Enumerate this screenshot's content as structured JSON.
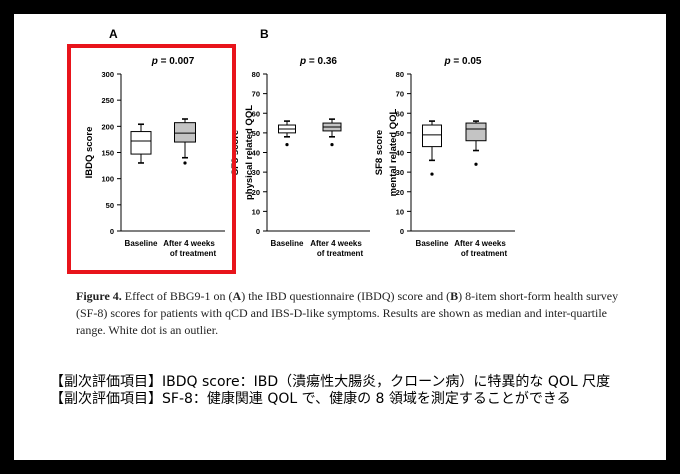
{
  "chart_data": [
    {
      "type": "box",
      "panel_label": "A",
      "p_value": "p = 0.007",
      "ylabel": "IBDQ score",
      "ylim": [
        0,
        300
      ],
      "yticks": [
        0,
        50,
        100,
        150,
        200,
        250,
        300
      ],
      "categories": [
        "Baseline",
        "After 4 weeks of treatment"
      ],
      "boxes": [
        {
          "whisker_low": 130,
          "q1": 147,
          "median": 172,
          "q3": 190,
          "whisker_high": 204,
          "outliers": []
        },
        {
          "whisker_low": 140,
          "q1": 170,
          "median": 187,
          "q3": 207,
          "whisker_high": 214,
          "outliers": [
            130
          ]
        }
      ]
    },
    {
      "type": "box",
      "panel_label": "B",
      "p_value": "p = 0.36",
      "ylabel": "SF8 score physical related QOL",
      "ylim": [
        0,
        80
      ],
      "yticks": [
        0,
        10,
        20,
        30,
        40,
        50,
        60,
        70,
        80
      ],
      "categories": [
        "Baseline",
        "After 4 weeks of treatment"
      ],
      "boxes": [
        {
          "whisker_low": 48,
          "q1": 50,
          "median": 52,
          "q3": 54,
          "whisker_high": 56,
          "outliers": [
            44
          ]
        },
        {
          "whisker_low": 48,
          "q1": 51,
          "median": 53,
          "q3": 55,
          "whisker_high": 57,
          "outliers": [
            44
          ]
        }
      ]
    },
    {
      "type": "box",
      "panel_label": "",
      "p_value": "p = 0.05",
      "ylabel": "SF8 score mental related QOL",
      "ylim": [
        0,
        80
      ],
      "yticks": [
        0,
        10,
        20,
        30,
        40,
        50,
        60,
        70,
        80
      ],
      "categories": [
        "Baseline",
        "After 4 weeks of treatment"
      ],
      "boxes": [
        {
          "whisker_low": 36,
          "q1": 43,
          "median": 49,
          "q3": 54,
          "whisker_high": 56,
          "outliers": [
            29
          ]
        },
        {
          "whisker_low": 41,
          "q1": 46,
          "median": 52,
          "q3": 55,
          "whisker_high": 56,
          "outliers": [
            34
          ]
        }
      ]
    }
  ],
  "highlight_color": "#e8141b",
  "caption": {
    "label": "Figure 4.",
    "text_1": " Effect of BBG9-1 on (",
    "bold_a": "A",
    "text_2": ") the IBD questionnaire (IBDQ) score and (",
    "bold_b": "B",
    "text_3": ") 8-item short-form health survey (SF-8) scores for patients with qCD and IBS-D-like symptoms. Results are shown as median and inter-quartile range. White dot is an outlier."
  },
  "notes": [
    "【副次評価項目】IBDQ score：IBD（潰瘍性大腸炎，クローン病）に特異的な QOL 尺度",
    "【副次評価項目】SF-8：健康関連 QOL で、健康の 8 領域を測定することができる"
  ]
}
